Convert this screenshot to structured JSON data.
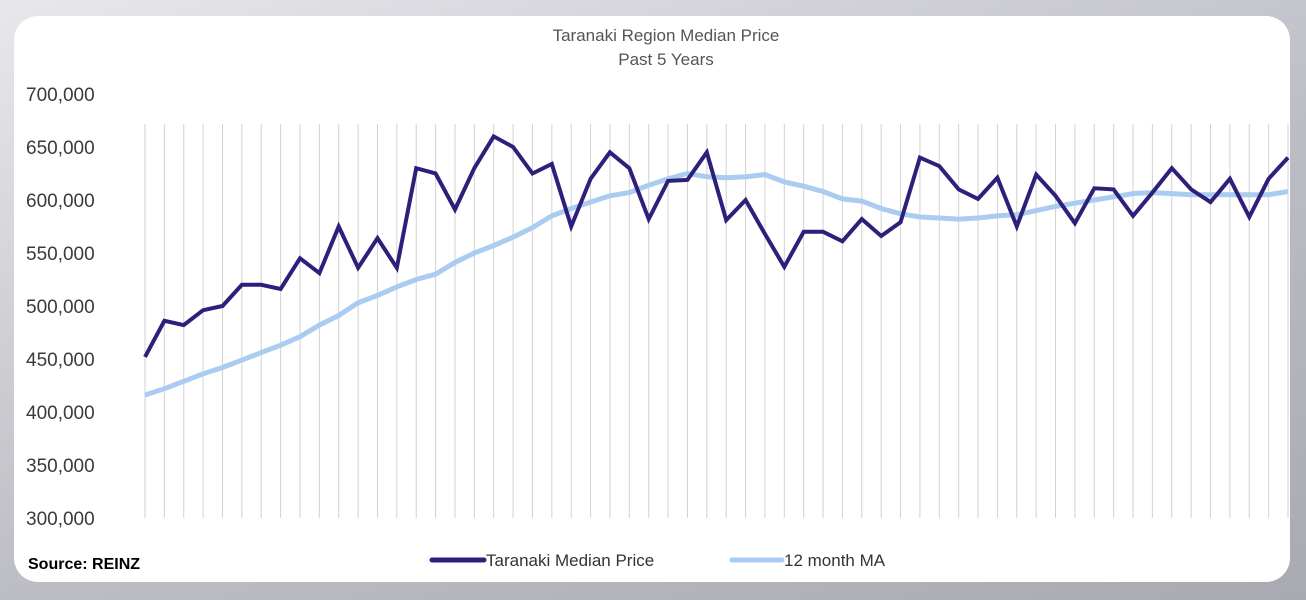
{
  "chart_data": {
    "type": "line",
    "title": "Taranaki Region Median Price",
    "subtitle": "Past 5 Years",
    "source": "Source: REINZ",
    "ylim": [
      300000,
      700000
    ],
    "yticks": [
      300000,
      350000,
      400000,
      450000,
      500000,
      550000,
      600000,
      650000,
      700000
    ],
    "ytick_labels": [
      "300,000",
      "350,000",
      "400,000",
      "450,000",
      "500,000",
      "550,000",
      "600,000",
      "650,000",
      "700,000"
    ],
    "grid": "vertical lines at each month",
    "legend_position": "bottom-center",
    "series": [
      {
        "name": "Taranaki Median Price",
        "color": "#2e1f7a",
        "values": [
          452000,
          486000,
          482000,
          496000,
          500000,
          520000,
          520000,
          516000,
          545000,
          531000,
          575000,
          536000,
          564000,
          536000,
          630000,
          625000,
          591000,
          630000,
          660000,
          650000,
          625000,
          634000,
          575000,
          620000,
          645000,
          630000,
          582000,
          618000,
          619000,
          645000,
          581000,
          600000,
          568000,
          537000,
          570000,
          570000,
          561000,
          582000,
          566000,
          579000,
          640000,
          632000,
          610000,
          601000,
          621000,
          575000,
          624000,
          604000,
          578000,
          611000,
          610000,
          585000,
          607000,
          630000,
          610000,
          598000,
          620000,
          584000,
          620000,
          640000
        ]
      },
      {
        "name": "12 month MA",
        "color": "#a9ccf0",
        "values": [
          416000,
          422000,
          429000,
          436000,
          442000,
          449000,
          456000,
          463000,
          471000,
          482000,
          491000,
          503000,
          510000,
          518000,
          525000,
          530000,
          541000,
          550000,
          557000,
          565000,
          574000,
          585000,
          592000,
          598000,
          604000,
          607000,
          614000,
          620000,
          625000,
          622000,
          621000,
          622000,
          624000,
          617000,
          613000,
          608000,
          601000,
          599000,
          592000,
          587000,
          584000,
          583000,
          582000,
          583000,
          585000,
          586000,
          590000,
          594000,
          597000,
          600000,
          603000,
          606000,
          607000,
          606000,
          605000,
          605000,
          605000,
          605000,
          605000,
          608000
        ]
      }
    ]
  }
}
